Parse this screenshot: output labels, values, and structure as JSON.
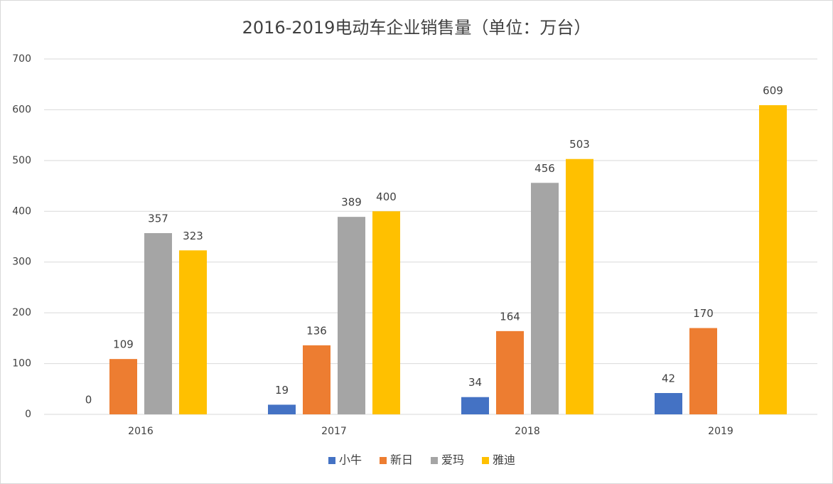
{
  "chart_data": {
    "type": "bar",
    "title": "2016-2019电动车企业销售量（单位：万台）",
    "categories": [
      "2016",
      "2017",
      "2018",
      "2019"
    ],
    "series": [
      {
        "name": "小牛",
        "color": "#4472c4",
        "values": [
          0,
          19,
          34,
          42
        ]
      },
      {
        "name": "新日",
        "color": "#ed7d31",
        "values": [
          109,
          136,
          164,
          170
        ]
      },
      {
        "name": "爱玛",
        "color": "#a5a5a5",
        "values": [
          357,
          389,
          456,
          null
        ]
      },
      {
        "name": "雅迪",
        "color": "#ffc000",
        "values": [
          323,
          400,
          503,
          609
        ]
      }
    ],
    "ylim": [
      0,
      700
    ],
    "yticks": [
      0,
      100,
      200,
      300,
      400,
      500,
      600,
      700
    ],
    "grid": true,
    "legend": "bottom"
  }
}
